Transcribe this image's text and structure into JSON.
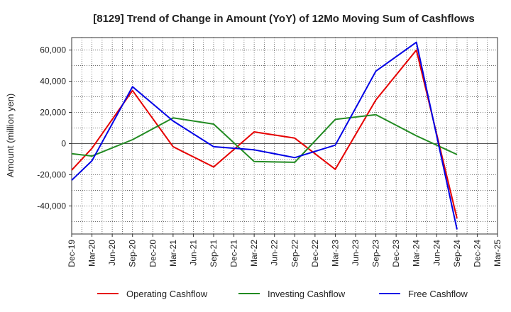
{
  "chart_data": {
    "type": "line",
    "title": "[8129]  Trend of Change in Amount (YoY) of 12Mo Moving Sum of Cashflows",
    "xlabel": "",
    "ylabel": "Amount (million yen)",
    "ylim": [
      -58000,
      68000
    ],
    "yticks": [
      -40000,
      -20000,
      0,
      20000,
      40000,
      60000
    ],
    "ytick_labels": [
      "-40,000",
      "-20,000",
      "0",
      "20,000",
      "40,000",
      "60,000"
    ],
    "grid": true,
    "legend_position": "bottom",
    "categories": [
      "Dec-19",
      "Mar-20",
      "Jun-20",
      "Sep-20",
      "Dec-20",
      "Mar-21",
      "Jun-21",
      "Sep-21",
      "Dec-21",
      "Mar-22",
      "Jun-22",
      "Sep-22",
      "Dec-22",
      "Mar-23",
      "Jun-23",
      "Sep-23",
      "Dec-23",
      "Mar-24",
      "Jun-24",
      "Sep-24",
      "Dec-24",
      "Mar-25"
    ],
    "series": [
      {
        "name": "Operating Cashflow",
        "color": "#e60000",
        "points": [
          [
            0,
            -17000
          ],
          [
            1,
            -3000
          ],
          [
            3,
            34000
          ],
          [
            5,
            -2000
          ],
          [
            7,
            -15000
          ],
          [
            9,
            7500
          ],
          [
            11,
            3500
          ],
          [
            13,
            -16500
          ],
          [
            15,
            28000
          ],
          [
            17,
            60000
          ],
          [
            19,
            -48000
          ]
        ]
      },
      {
        "name": "Investing Cashflow",
        "color": "#228b22",
        "points": [
          [
            0,
            -6500
          ],
          [
            1,
            -8000
          ],
          [
            3,
            2500
          ],
          [
            5,
            16500
          ],
          [
            7,
            12500
          ],
          [
            9,
            -11500
          ],
          [
            11,
            -12000
          ],
          [
            13,
            15500
          ],
          [
            15,
            18500
          ],
          [
            17,
            5000
          ],
          [
            19,
            -7000
          ]
        ]
      },
      {
        "name": "Free Cashflow",
        "color": "#0000e6",
        "points": [
          [
            0,
            -23500
          ],
          [
            1,
            -11000
          ],
          [
            3,
            36500
          ],
          [
            5,
            14500
          ],
          [
            7,
            -2000
          ],
          [
            9,
            -4000
          ],
          [
            11,
            -9000
          ],
          [
            13,
            -1000
          ],
          [
            15,
            46500
          ],
          [
            17,
            65000
          ],
          [
            19,
            -55000
          ]
        ]
      }
    ]
  }
}
